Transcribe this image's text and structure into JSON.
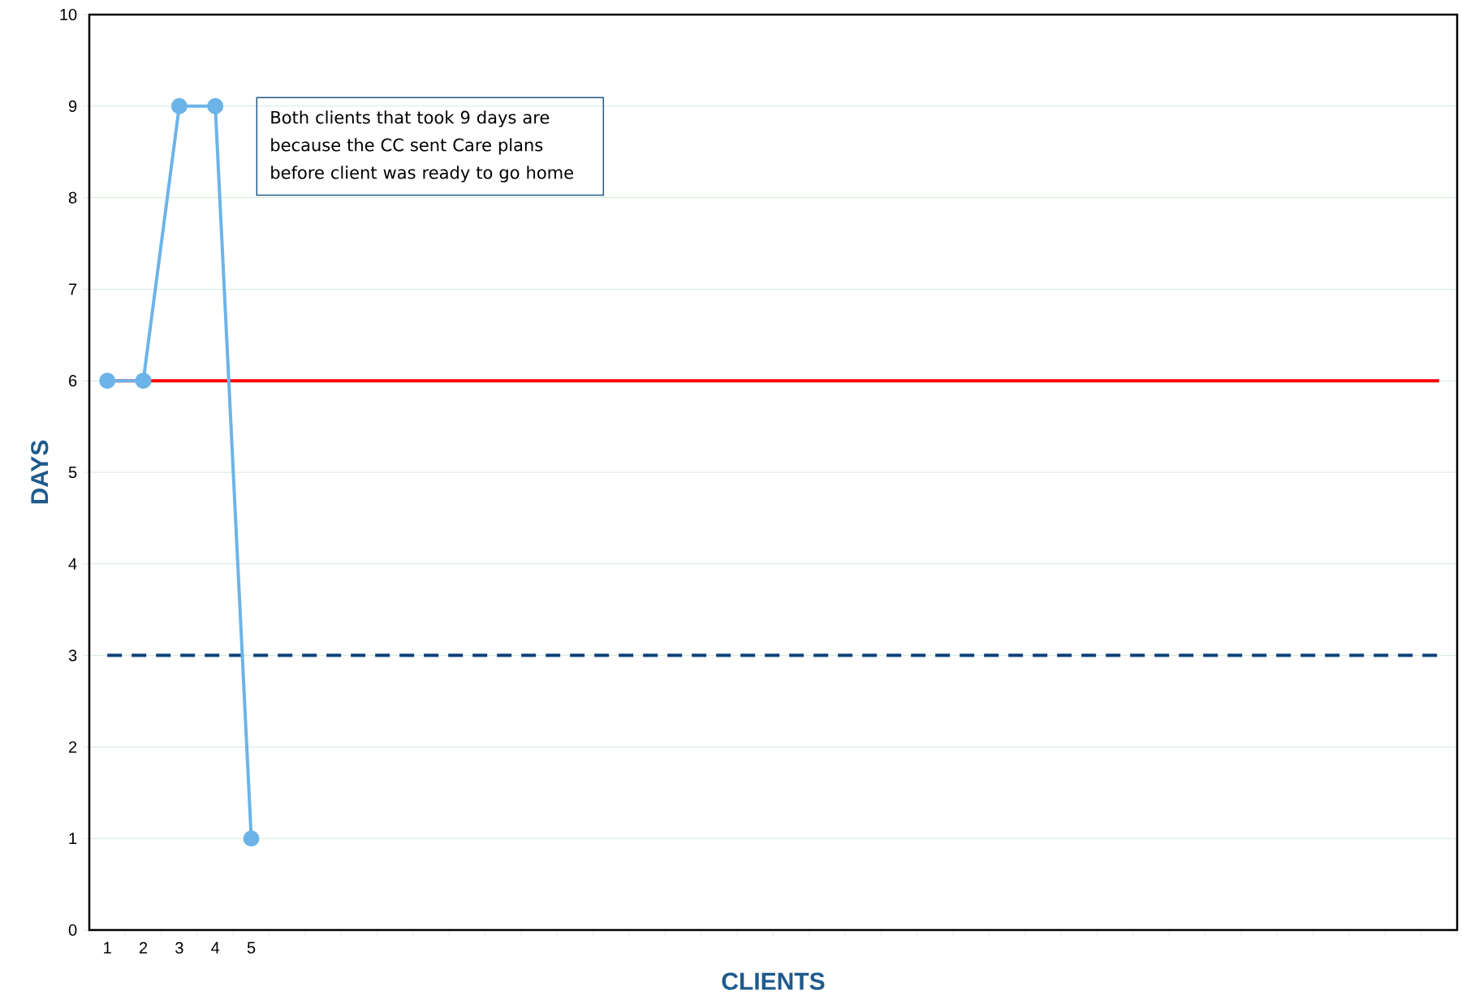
{
  "chart_data": {
    "type": "line",
    "xlabel": "CLIENTS",
    "ylabel": "DAYS",
    "categories": [
      "1",
      "2",
      "3",
      "4",
      "5",
      null,
      null,
      null,
      null,
      null,
      null,
      null,
      null,
      null,
      null,
      null,
      null,
      null,
      null,
      null,
      null,
      null,
      null,
      null,
      null,
      null,
      null,
      null,
      null,
      null,
      null,
      null,
      null,
      null,
      null,
      null,
      null,
      null
    ],
    "series": [
      {
        "color": "#6cb4e8",
        "values": [
          6,
          6,
          9,
          9,
          1,
          null,
          null,
          null,
          null,
          null,
          null,
          null,
          null,
          null,
          null,
          null,
          null,
          null,
          null,
          null,
          null,
          null,
          null,
          null,
          null,
          null,
          null,
          null,
          null,
          null,
          null,
          null,
          null,
          null,
          null,
          null,
          null,
          null
        ]
      }
    ],
    "ylim": [
      0,
      10
    ],
    "yticks": [
      0,
      1,
      2,
      3,
      4,
      5,
      6,
      7,
      8,
      9,
      10
    ],
    "grid": "y",
    "marker": "circle",
    "line_style": "solid",
    "ref_lines": [
      {
        "axis": "y",
        "value": 6,
        "color": "#ff0000",
        "line_style": "solid"
      },
      {
        "axis": "y",
        "value": 3,
        "color": "#0d3f7a",
        "line_style": "dashed"
      }
    ],
    "annotations": [
      "Both clients that took 9 days are because the CC sent Care plans before client was ready to go home"
    ]
  }
}
